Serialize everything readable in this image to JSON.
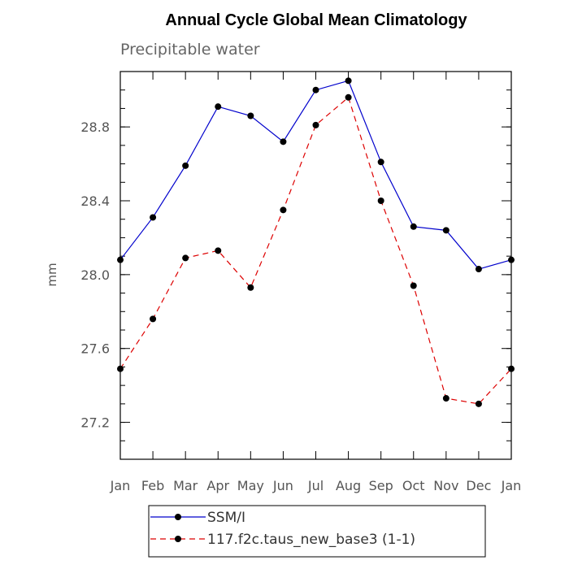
{
  "chart_data": {
    "type": "line",
    "title": "Annual Cycle Global Mean Climatology",
    "subtitle": "Precipitable water",
    "xlabel": "",
    "ylabel": "mm",
    "categories": [
      "Jan",
      "Feb",
      "Mar",
      "Apr",
      "May",
      "Jun",
      "Jul",
      "Aug",
      "Sep",
      "Oct",
      "Nov",
      "Dec",
      "Jan"
    ],
    "ylim": [
      27.0,
      29.1
    ],
    "yticks": [
      "27.2",
      "27.6",
      "28.0",
      "28.4",
      "28.8"
    ],
    "series": [
      {
        "name": "SSM/I",
        "color": "#0000cc",
        "dash": "solid",
        "values": [
          28.08,
          28.31,
          28.59,
          28.91,
          28.86,
          28.72,
          29.0,
          29.05,
          28.61,
          28.26,
          28.24,
          28.03,
          28.08
        ]
      },
      {
        "name": "117.f2c.taus_new_base3 (1-1)",
        "color": "#dd0000",
        "dash": "dashed",
        "values": [
          27.49,
          27.76,
          28.09,
          28.13,
          27.93,
          28.35,
          28.81,
          28.96,
          28.4,
          27.94,
          27.33,
          27.3,
          27.49
        ]
      }
    ],
    "legend_position": "bottom"
  }
}
